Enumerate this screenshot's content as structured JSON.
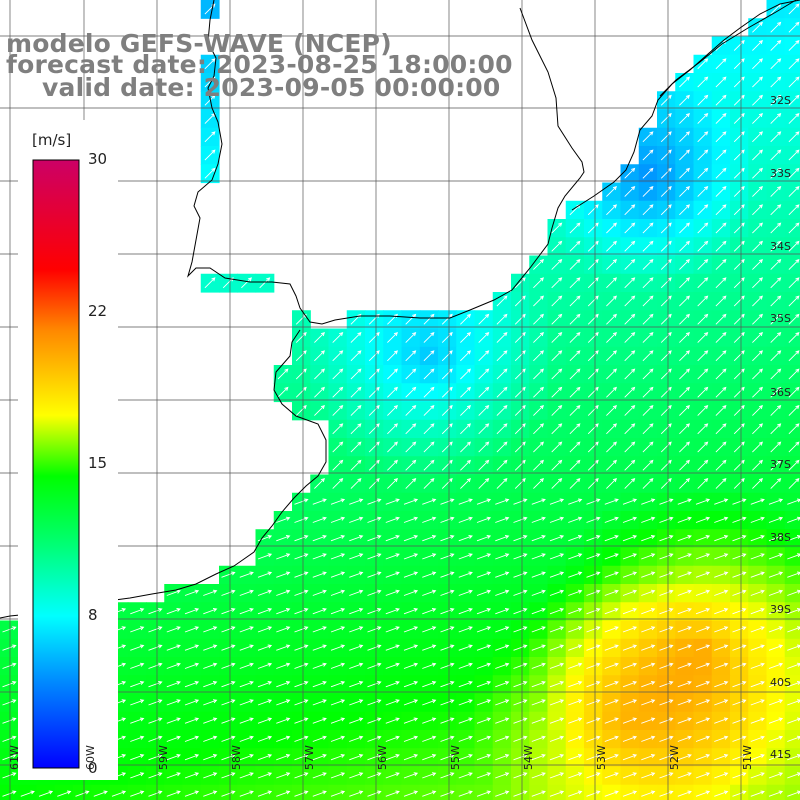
{
  "title": {
    "line1": "modelo GEFS-WAVE (NCEP)",
    "line2": "forecast date: 2023-08-25 18:00:00",
    "line3": "valid date: 2023-09-05 00:00:00"
  },
  "colorbar": {
    "unit": "[m/s]",
    "ticks": [
      "30",
      "22",
      "15",
      "8",
      "0"
    ],
    "stops": [
      "#0000ff",
      "#00aaff",
      "#00ffff",
      "#00ff00",
      "#ffff00",
      "#ff9900",
      "#ff0000",
      "#cc0066"
    ]
  },
  "lat_labels": [
    "32S",
    "33S",
    "34S",
    "35S",
    "36S",
    "37S",
    "38S",
    "39S",
    "40S",
    "41S"
  ],
  "lon_labels": [
    "61W",
    "60W",
    "59W",
    "58W",
    "57W",
    "56W",
    "55W",
    "54W",
    "53W",
    "52W",
    "51W"
  ],
  "colors": {
    "grid": "#000000",
    "coast": "#000000",
    "arrow": "#ffffff",
    "land": "#ffffff"
  }
}
